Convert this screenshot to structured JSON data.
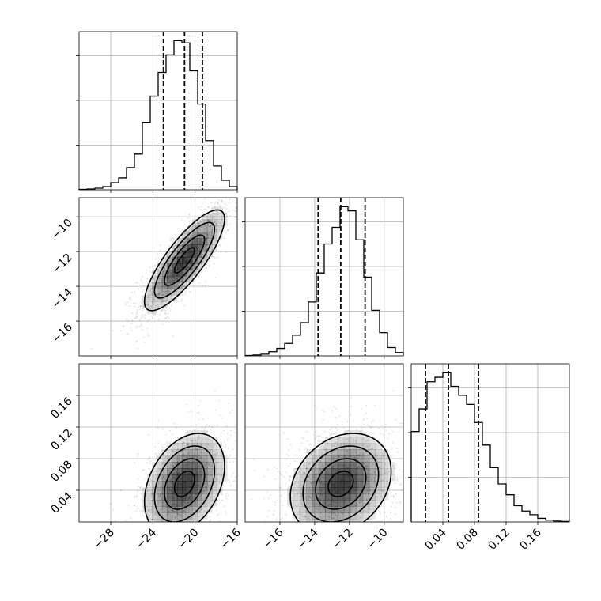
{
  "chart_data": {
    "type": "corner",
    "grid": true,
    "parameters": [
      {
        "range": [
          -31,
          -16
        ],
        "ticks": [
          -28,
          -24,
          -20,
          -16
        ],
        "tick_labels": [
          "−28",
          "−24",
          "−20",
          "−16"
        ],
        "quantiles": [
          -23.0,
          -21.0,
          -19.3
        ]
      },
      {
        "range": [
          -18,
          -8.9
        ],
        "ticks": [
          -16,
          -14,
          -12,
          -10
        ],
        "tick_labels": [
          "−16",
          "−14",
          "−12",
          "−10"
        ],
        "quantiles": [
          -13.8,
          -12.5,
          -11.1
        ]
      },
      {
        "range": [
          0.0,
          0.2
        ],
        "ticks": [
          0.04,
          0.08,
          0.12,
          0.16
        ],
        "tick_labels": [
          "0.04",
          "0.08",
          "0.12",
          "0.16"
        ],
        "quantiles": [
          0.018,
          0.047,
          0.085
        ]
      }
    ],
    "histograms": [
      {
        "param": 0,
        "bin_edges": [
          -31,
          -30.25,
          -29.5,
          -28.75,
          -28,
          -27.25,
          -26.5,
          -25.75,
          -25,
          -24.25,
          -23.5,
          -22.75,
          -22,
          -21.25,
          -20.5,
          -19.75,
          -19,
          -18.25,
          -17.5,
          -16.75,
          -16
        ],
        "counts": [
          0.5,
          1,
          2,
          4,
          9,
          15,
          28,
          45,
          85,
          118,
          148,
          170,
          188,
          185,
          150,
          108,
          62,
          30,
          12,
          4
        ]
      },
      {
        "param": 1,
        "bin_edges": [
          -18,
          -17.545,
          -17.09,
          -16.635,
          -16.18,
          -15.725,
          -15.27,
          -14.815,
          -14.36,
          -13.905,
          -13.45,
          -12.995,
          -12.54,
          -12.085,
          -11.63,
          -11.175,
          -10.72,
          -10.265,
          -9.81,
          -9.355,
          -8.9
        ],
        "counts": [
          0.5,
          1,
          2,
          5,
          9,
          15,
          25,
          40,
          65,
          100,
          135,
          155,
          180,
          175,
          140,
          95,
          55,
          28,
          10,
          4
        ]
      },
      {
        "param": 2,
        "bin_edges": [
          0.0,
          0.01,
          0.02,
          0.03,
          0.04,
          0.05,
          0.06,
          0.07,
          0.08,
          0.09,
          0.1,
          0.11,
          0.12,
          0.13,
          0.14,
          0.15,
          0.16,
          0.17,
          0.18,
          0.19,
          0.2
        ],
        "counts": [
          100,
          125,
          155,
          160,
          165,
          150,
          140,
          130,
          110,
          85,
          60,
          42,
          30,
          18,
          12,
          8,
          4,
          2,
          1,
          0.5
        ]
      }
    ],
    "joint": [
      {
        "x_param": 0,
        "y_param": 1,
        "mean": [
          -21.0,
          -12.5
        ],
        "sd": [
          1.9,
          1.45
        ],
        "corr": 0.82,
        "contour_levels": [
          0.5,
          1.0,
          1.5,
          2.0
        ]
      },
      {
        "x_param": 0,
        "y_param": 2,
        "mean": [
          -21.0,
          0.048
        ],
        "sd": [
          1.9,
          0.032
        ],
        "corr": 0.35,
        "contour_levels": [
          0.5,
          1.0,
          1.5,
          2.0
        ]
      },
      {
        "x_param": 1,
        "y_param": 2,
        "mean": [
          -12.5,
          0.048
        ],
        "sd": [
          1.45,
          0.032
        ],
        "corr": 0.25,
        "contour_levels": [
          0.5,
          1.0,
          1.5,
          2.0
        ]
      }
    ]
  }
}
